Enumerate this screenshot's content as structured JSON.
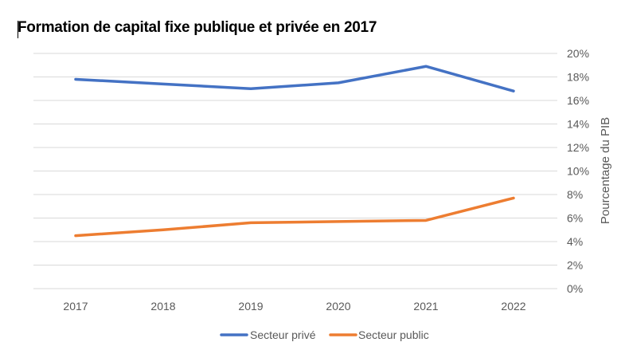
{
  "chart_data": {
    "type": "line",
    "title": "Formation de capital fixe publique et privée en 2017",
    "xlabel": "",
    "ylabel": "Pourcentage du PIB",
    "categories": [
      "2017",
      "2018",
      "2019",
      "2020",
      "2021",
      "2022"
    ],
    "ylim": [
      0,
      20
    ],
    "yticks": [
      "0%",
      "2%",
      "4%",
      "6%",
      "8%",
      "10%",
      "12%",
      "14%",
      "16%",
      "18%",
      "20%"
    ],
    "grid": true,
    "legend_position": "bottom",
    "series": [
      {
        "name": "Secteur privé",
        "color": "#4472C4",
        "values": [
          17.8,
          17.4,
          17.0,
          17.5,
          18.9,
          16.8
        ]
      },
      {
        "name": "Secteur public",
        "color": "#ED7D31",
        "values": [
          4.5,
          5.0,
          5.6,
          5.7,
          5.8,
          7.7
        ]
      }
    ]
  }
}
